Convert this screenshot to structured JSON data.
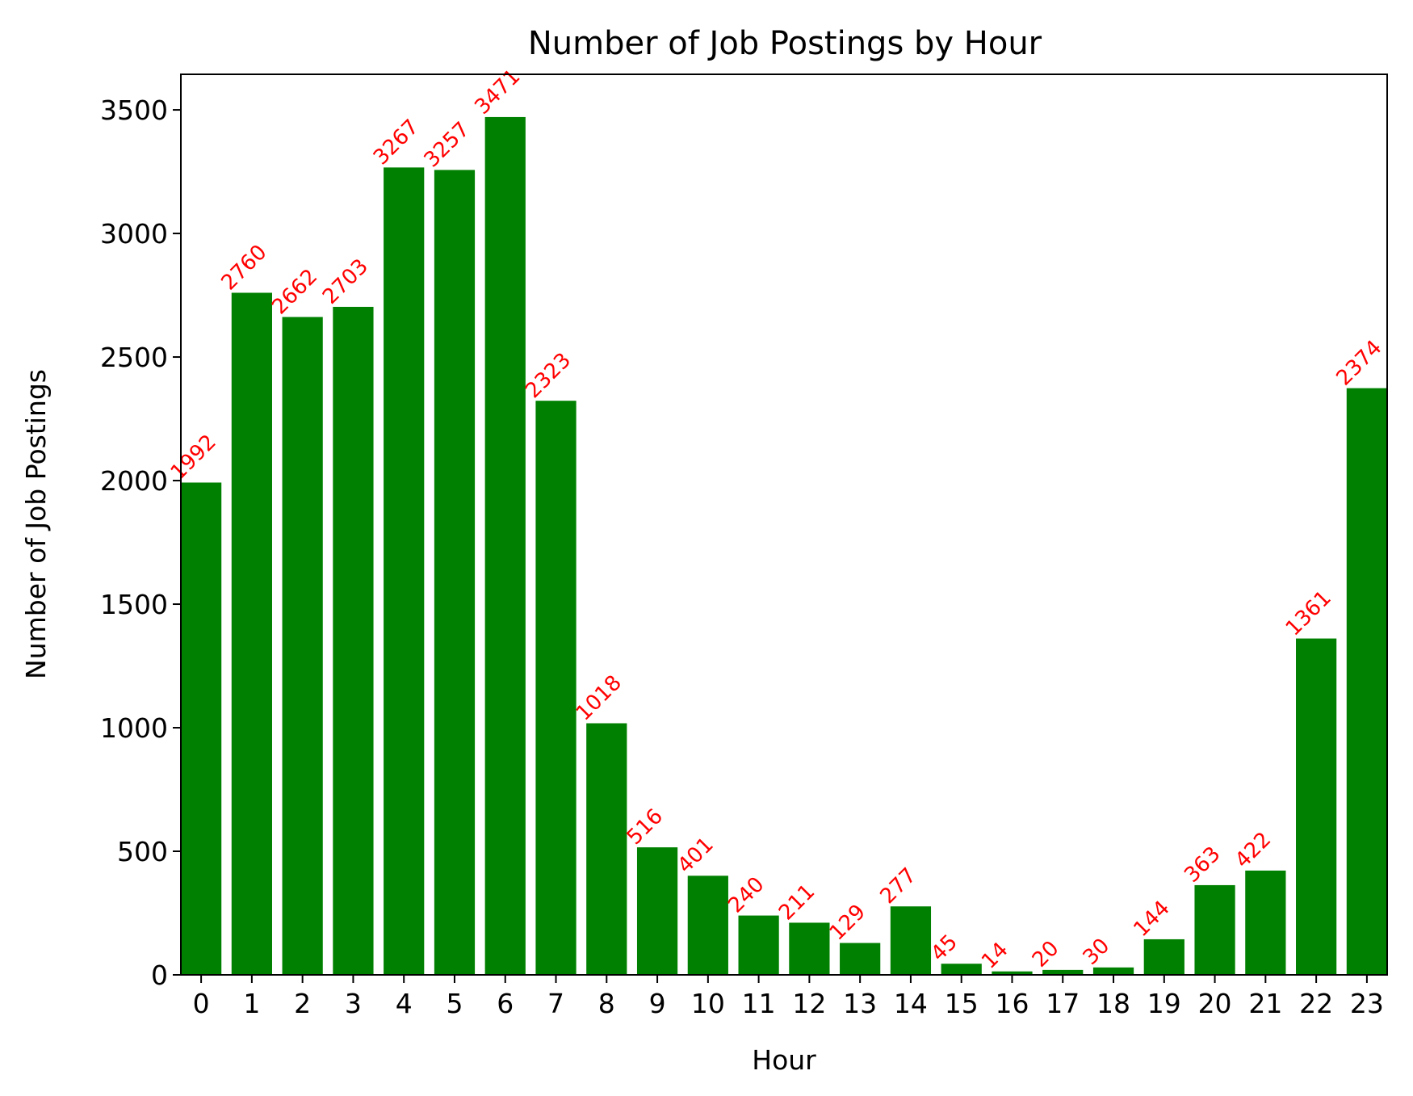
{
  "chart_data": {
    "type": "bar",
    "title": "Number of Job Postings by Hour",
    "xlabel": "Hour",
    "ylabel": "Number of Job Postings",
    "categories": [
      "0",
      "1",
      "2",
      "3",
      "4",
      "5",
      "6",
      "7",
      "8",
      "9",
      "10",
      "11",
      "12",
      "13",
      "14",
      "15",
      "16",
      "17",
      "18",
      "19",
      "20",
      "21",
      "22",
      "23"
    ],
    "values": [
      1992,
      2760,
      2662,
      2703,
      3267,
      3257,
      3471,
      2323,
      1018,
      516,
      401,
      240,
      211,
      129,
      277,
      45,
      14,
      20,
      30,
      144,
      363,
      422,
      1361,
      2374
    ],
    "ylim": [
      0,
      3644
    ],
    "yticks": [
      0,
      500,
      1000,
      1500,
      2000,
      2500,
      3000,
      3500
    ],
    "grid": false,
    "bar_color": "#008000",
    "data_label_color": "#ff0000",
    "data_label_rotation_deg": 45
  }
}
